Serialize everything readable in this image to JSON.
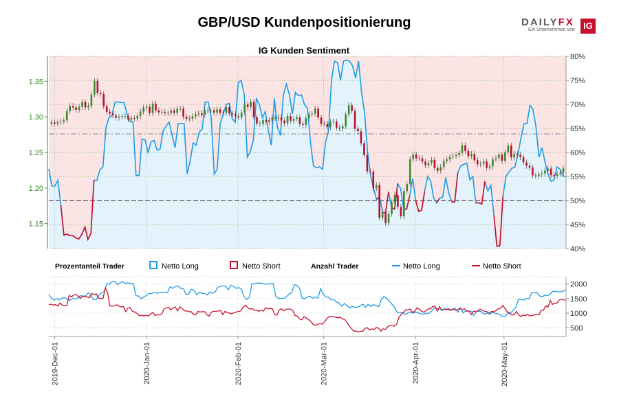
{
  "header": {
    "title": "GBP/USD Kundenpositionierung",
    "logo_text": "DAILYFX",
    "logo_sub": "Ein Unternehmen von",
    "logo_badge": "IG"
  },
  "colors": {
    "long": "#1e9be6",
    "short": "#c8102e",
    "long_fill": "#e3f2fb",
    "short_fill": "#fbe4e4",
    "candle_up": "#3a8a2a",
    "candle_down": "#b3122e",
    "price_axis": "#3a8a2a",
    "grid": "#bbbbbb"
  },
  "chart_data": [
    {
      "type": "line",
      "title": "IG Kunden Sentiment",
      "x_range": [
        "2019-11-29",
        "2020-05-22"
      ],
      "price_axis": {
        "ticks": [
          "1.15",
          "1.20",
          "1.25",
          "1.30",
          "1.35"
        ],
        "range": [
          1.115,
          1.385
        ]
      },
      "percent_axis": {
        "ticks": [
          "40%",
          "45%",
          "50%",
          "55%",
          "60%",
          "65%",
          "70%",
          "75%",
          "80%"
        ],
        "range": [
          40,
          80
        ]
      },
      "reference_lines": {
        "fifty_percent": 50,
        "price_level": 1.276
      },
      "series": [
        {
          "name": "Netto Long",
          "values": [
            56.6,
            53.0,
            53.0,
            54.2,
            49.0,
            42.8,
            43.0,
            42.7,
            42.7,
            42.2,
            42.0,
            43.0,
            44.5,
            41.9,
            43.1,
            54.2,
            54.2,
            56.4,
            57.0,
            65.2,
            67.2,
            67.7,
            70.5,
            70.5,
            70.4,
            70.4,
            68.0,
            66.5,
            66.3,
            55.2,
            55.2,
            62.8,
            62.6,
            60.0,
            62.2,
            62.5,
            60.5,
            60.7,
            64.5,
            65.5,
            66.3,
            63.5,
            61.0,
            66.0,
            66.0,
            66.0,
            55.5,
            58.2,
            62.0,
            61.5,
            64.2,
            64.8,
            70.5,
            70.5,
            67.3,
            55.5,
            56.5,
            66.0,
            68.0,
            70.0,
            70.2,
            67.0,
            66.3,
            74.5,
            75.0,
            72.0,
            59.0,
            60.2,
            62.5,
            71.2,
            70.0,
            67.3,
            68.5,
            64.5,
            61.5,
            71.2,
            65.3,
            63.5,
            72.0,
            74.2,
            72.0,
            68.0,
            72.5,
            71.8,
            72.0,
            70.0,
            69.2,
            62.2,
            57.2,
            56.8,
            57.0,
            56.5,
            62.0,
            64.5,
            75.0,
            79.0,
            78.7,
            75.0,
            79.0,
            79.2,
            79.0,
            78.0,
            75.5,
            79.0,
            72.5,
            68.2,
            60.2,
            55.2,
            52.5,
            50.2,
            50.8,
            47.5,
            47.5,
            51.8,
            48.5,
            48.2,
            53.5,
            52.5,
            48.2,
            48.2,
            51.0,
            54.5,
            50.0,
            47.7,
            48.0,
            52.0,
            55.0,
            54.0,
            50.5,
            49.5,
            50.5,
            50.7,
            54.8,
            51.5,
            49.7,
            49.7,
            55.8,
            57.2,
            57.5,
            57.8,
            54.3,
            55.0,
            49.5,
            49.5,
            49.3,
            54.0,
            52.0,
            53.2,
            47.0,
            40.5,
            40.6,
            50.8,
            55.0,
            55.9,
            56.7,
            57.0,
            59.5,
            63.0,
            66.0,
            66.0,
            69.8,
            69.0,
            65.3,
            59.0,
            61.0,
            58.0,
            55.5,
            54.0,
            54.3,
            57.0,
            56.5,
            55.0,
            55.0
          ]
        },
        {
          "name": "Netto Short",
          "values": [
            43.4,
            47.0,
            47.0,
            45.8,
            51.0,
            57.2,
            57.0,
            57.3,
            57.3,
            57.8,
            58.0,
            57.0,
            55.5,
            58.1,
            56.9,
            45.8,
            45.8,
            43.6,
            43.0,
            34.8,
            32.8,
            32.3,
            29.5,
            29.5,
            29.6,
            29.6,
            32.0,
            33.5,
            33.7,
            44.8,
            44.8,
            37.2,
            37.4,
            40.0,
            37.8,
            37.5,
            39.5,
            39.3,
            35.5,
            34.5,
            33.7,
            36.5,
            39.0,
            34.0,
            34.0,
            34.0,
            44.5,
            41.8,
            38.0,
            38.5,
            35.8,
            35.2,
            29.5,
            29.5,
            32.7,
            44.5,
            43.5,
            34.0,
            32.0,
            30.0,
            29.8,
            33.0,
            33.7,
            25.5,
            25.0,
            28.0,
            41.0,
            39.8,
            37.5,
            28.8,
            30.0,
            32.7,
            31.5,
            35.5,
            38.5,
            28.8,
            34.7,
            36.5,
            28.0,
            25.8,
            28.0,
            32.0,
            27.5,
            28.2,
            28.0,
            30.0,
            30.8,
            37.8,
            42.8,
            43.2,
            43.0,
            43.5,
            38.0,
            35.5,
            25.0,
            21.0,
            21.3,
            25.0,
            21.0,
            20.8,
            21.0,
            22.0,
            24.5,
            21.0,
            27.5,
            31.8,
            39.8,
            44.8,
            47.5,
            49.8,
            49.2,
            52.5,
            52.5,
            48.2,
            51.5,
            51.8,
            46.5,
            47.5,
            51.8,
            51.8,
            49.0,
            45.5,
            50.0,
            52.3,
            52.0,
            48.0,
            45.0,
            46.0,
            49.5,
            50.5,
            49.5,
            49.3,
            45.2,
            48.5,
            50.3,
            50.3,
            44.2,
            42.8,
            42.5,
            42.2,
            45.7,
            45.0,
            50.5,
            50.5,
            50.7,
            46.0,
            48.0,
            46.8,
            53.0,
            59.5,
            59.4,
            49.2,
            45.0,
            44.1,
            43.3,
            43.0,
            40.5,
            37.0,
            34.0,
            34.0,
            30.2,
            31.0,
            34.7,
            41.0,
            39.0,
            42.0,
            44.5,
            46.0,
            45.7,
            43.0,
            43.5,
            45.0,
            45.0
          ]
        },
        {
          "name": "GBP/USD",
          "type": "candlestick",
          "close": [
            1.2922,
            1.2906,
            1.2924,
            1.2934,
            1.2952,
            1.3079,
            1.3153,
            1.3132,
            1.3098,
            1.3138,
            1.321,
            1.3133,
            1.3157,
            1.3314,
            1.3503,
            1.3335,
            1.3319,
            1.3149,
            1.3071,
            1.3048,
            1.302,
            1.2987,
            1.3,
            1.3009,
            1.3012,
            1.2963,
            1.2981,
            1.2977,
            1.3012,
            1.3073,
            1.3129,
            1.314,
            1.3054,
            1.3186,
            1.3091,
            1.3063,
            1.307,
            1.3053,
            1.3053,
            1.309,
            1.3055,
            1.3114,
            1.3116,
            1.3003,
            1.2973,
            1.2977,
            1.3007,
            1.3038,
            1.3051,
            1.3028,
            1.3093,
            1.3084,
            1.3091,
            1.306,
            1.3104,
            1.3058,
            1.3057,
            1.3136,
            1.305,
            1.3036,
            1.3009,
            1.2993,
            1.3062,
            1.3173,
            1.3136,
            1.3211,
            1.2999,
            1.2906,
            1.2899,
            1.2953,
            1.2928,
            1.2952,
            1.2986,
            1.2984,
            1.2995,
            1.2949,
            1.291,
            1.3011,
            1.2946,
            1.2971,
            1.2993,
            1.2901,
            1.2887,
            1.2981,
            1.3036,
            1.3045,
            1.3116,
            1.299,
            1.2902,
            1.2902,
            1.2856,
            1.293,
            1.2934,
            1.2849,
            1.2835,
            1.2869,
            1.3034,
            1.3162,
            1.3082,
            1.2832,
            1.2797,
            1.263,
            1.2462,
            1.2234,
            1.2231,
            1.1996,
            1.2043,
            1.1583,
            1.1658,
            1.151,
            1.1637,
            1.18,
            1.19,
            1.1737,
            1.1602,
            1.1957,
            1.2055,
            1.2406,
            1.247,
            1.2419,
            1.2418,
            1.2372,
            1.232,
            1.2354,
            1.2395,
            1.228,
            1.2243,
            1.2297,
            1.238,
            1.2403,
            1.244,
            1.245,
            1.2463,
            1.2493,
            1.26,
            1.2521,
            1.2448,
            1.2479,
            1.2391,
            1.2335,
            1.2341,
            1.2372,
            1.2286,
            1.2305,
            1.2404,
            1.2422,
            1.2469,
            1.2381,
            1.2504,
            1.2598,
            1.243,
            1.2482,
            1.2466,
            1.2433,
            1.2361,
            1.2312,
            1.2288,
            1.2178,
            1.217,
            1.2193,
            1.2204,
            1.2244,
            1.2273,
            1.218,
            1.2172,
            1.22,
            1.2212,
            1.2275
          ]
        }
      ]
    },
    {
      "type": "line",
      "title": "Anzahl Trader",
      "x_range": [
        "2019-11-29",
        "2020-05-22"
      ],
      "count_axis": {
        "ticks": [
          "500",
          "1000",
          "1500",
          "2000"
        ],
        "range": [
          200,
          2250
        ]
      },
      "series": [
        {
          "name": "Netto Long",
          "values": [
            1640,
            1520,
            1450,
            1500,
            1450,
            1520,
            1530,
            1480,
            1440,
            1510,
            1480,
            1520,
            1600,
            1580,
            1600,
            1700,
            1600,
            1460,
            1470,
            1620,
            1700,
            1740,
            2020,
            1990,
            2080,
            2080,
            1980,
            2040,
            2080,
            2020,
            2040,
            2020,
            2020,
            1600,
            1590,
            1490,
            1560,
            1610,
            1680,
            1670,
            1710,
            1690,
            1700,
            1720,
            1700,
            1720,
            1910,
            1850,
            1920,
            1930,
            1850,
            1840,
            1640,
            1660,
            1820,
            1780,
            1630,
            1720,
            1680,
            1670,
            1620,
            1730,
            1680,
            1720,
            1880,
            1920,
            1940,
            1930,
            1800,
            1960,
            1920,
            1850,
            1880,
            1810,
            1560,
            1470,
            1550,
            2020,
            2000,
            2030,
            2030,
            2020,
            1990,
            2000,
            2010,
            2020,
            1580,
            1500,
            1510,
            1500,
            1560,
            1650,
            1700,
            1980,
            1950,
            1860,
            1510,
            1500,
            1550,
            1580,
            1510,
            1560,
            1520,
            1840,
            1640,
            1560,
            1550,
            1460,
            1460,
            1380,
            1340,
            1240,
            1330,
            1260,
            1180,
            1240,
            1190,
            1210,
            1250,
            1310,
            1200,
            1300,
            1230,
            1290,
            1260,
            1220,
            1460,
            1570,
            1510,
            1420,
            1310,
            1200,
            1020,
            1010,
            1020,
            960,
            1000,
            1040,
            1000,
            1030,
            1010,
            980,
            960,
            1000,
            990,
            1060,
            1180,
            1150,
            1140,
            1090,
            1170,
            1120,
            1100,
            1140,
            1170,
            1030,
            1180,
            1010,
            1080,
            1080,
            1070,
            920,
            1050,
            1070,
            1050,
            960,
            1000,
            960,
            1030,
            1000,
            980,
            950,
            880,
            880,
            1040,
            1000,
            1100,
            1200,
            1480,
            1470,
            1450,
            1500,
            1500,
            1700,
            1700,
            1700,
            1590,
            1560,
            1620,
            1600,
            1660,
            1750,
            1750,
            1730,
            1730,
            1760,
            1800
          ]
        },
        {
          "name": "Netto Short",
          "values": [
            1290,
            1310,
            1280,
            1290,
            1240,
            1350,
            1270,
            1260,
            1270,
            1610,
            1560,
            1620,
            1640,
            1580,
            1500,
            1590,
            1560,
            1560,
            1530,
            1680,
            1630,
            1660,
            1520,
            1500,
            1510,
            1860,
            1710,
            1250,
            1240,
            1250,
            1290,
            1240,
            1210,
            1230,
            1060,
            1170,
            1190,
            1060,
            1040,
            990,
            910,
            930,
            910,
            930,
            900,
            960,
            1030,
            920,
            940,
            940,
            970,
            1150,
            1180,
            1200,
            1110,
            1180,
            1210,
            1080,
            1220,
            1160,
            1080,
            1080,
            1050,
            1050,
            960,
            940,
            1060,
            1040,
            1050,
            1050,
            940,
            900,
            1040,
            1060,
            1070,
            1070,
            1100,
            950,
            1060,
            1020,
            1000,
            980,
            1020,
            1040,
            1060,
            1080,
            1200,
            1270,
            1190,
            1140,
            1160,
            1100,
            1110,
            1060,
            1100,
            1070,
            1190,
            1150,
            1160,
            1150,
            950,
            930,
            1110,
            1150,
            1080,
            1130,
            1140,
            1140,
            1090,
            920,
            900,
            800,
            770,
            880,
            830,
            780,
            720,
            620,
            580,
            620,
            640,
            620,
            690,
            800,
            880,
            880,
            880,
            860,
            840,
            860,
            800,
            780,
            680,
            560,
            470,
            380,
            390,
            350,
            380,
            380,
            480,
            500,
            420,
            460,
            440,
            510,
            480,
            380,
            460,
            440,
            530,
            580,
            580,
            550,
            630,
            850,
            960,
            1020,
            1110,
            1120,
            1140,
            1030,
            1060,
            1180,
            1140,
            1070,
            1030,
            1090,
            1150,
            1150,
            1230,
            1240,
            1070,
            1220,
            1120,
            1120,
            1130,
            1150,
            1100,
            1130,
            1100,
            1120,
            1170,
            1110,
            1150,
            1070,
            1070,
            950,
            1070,
            1050,
            1090,
            1130,
            1100,
            1060,
            1050,
            1000,
            1060,
            1050,
            1090,
            1150,
            1170,
            1260,
            1160,
            1040,
            980,
            940,
            940,
            1060,
            950,
            880,
            940,
            910,
            960,
            900,
            920,
            940,
            960,
            940,
            1100,
            1100,
            1250,
            1200,
            1440,
            1300,
            1350,
            1340,
            1450,
            1480,
            1450,
            1450
          ]
        }
      ]
    }
  ],
  "legend": {
    "group1_label": "Prozentanteil Trader",
    "group1_long": "Netto Long",
    "group1_short": "Netto Short",
    "group2_label": "Anzahl Trader",
    "group2_long": "Netto Long",
    "group2_short": "Netto Short"
  },
  "x_axis": {
    "ticks": [
      "2019-Dec-01",
      "2020-Jan-01",
      "2020-Feb-01",
      "2020-Mar-01",
      "2020-Apr-01",
      "2020-May-01"
    ],
    "tick_dates": [
      "2019-12-01",
      "2020-01-01",
      "2020-02-01",
      "2020-03-01",
      "2020-04-01",
      "2020-05-01"
    ]
  }
}
